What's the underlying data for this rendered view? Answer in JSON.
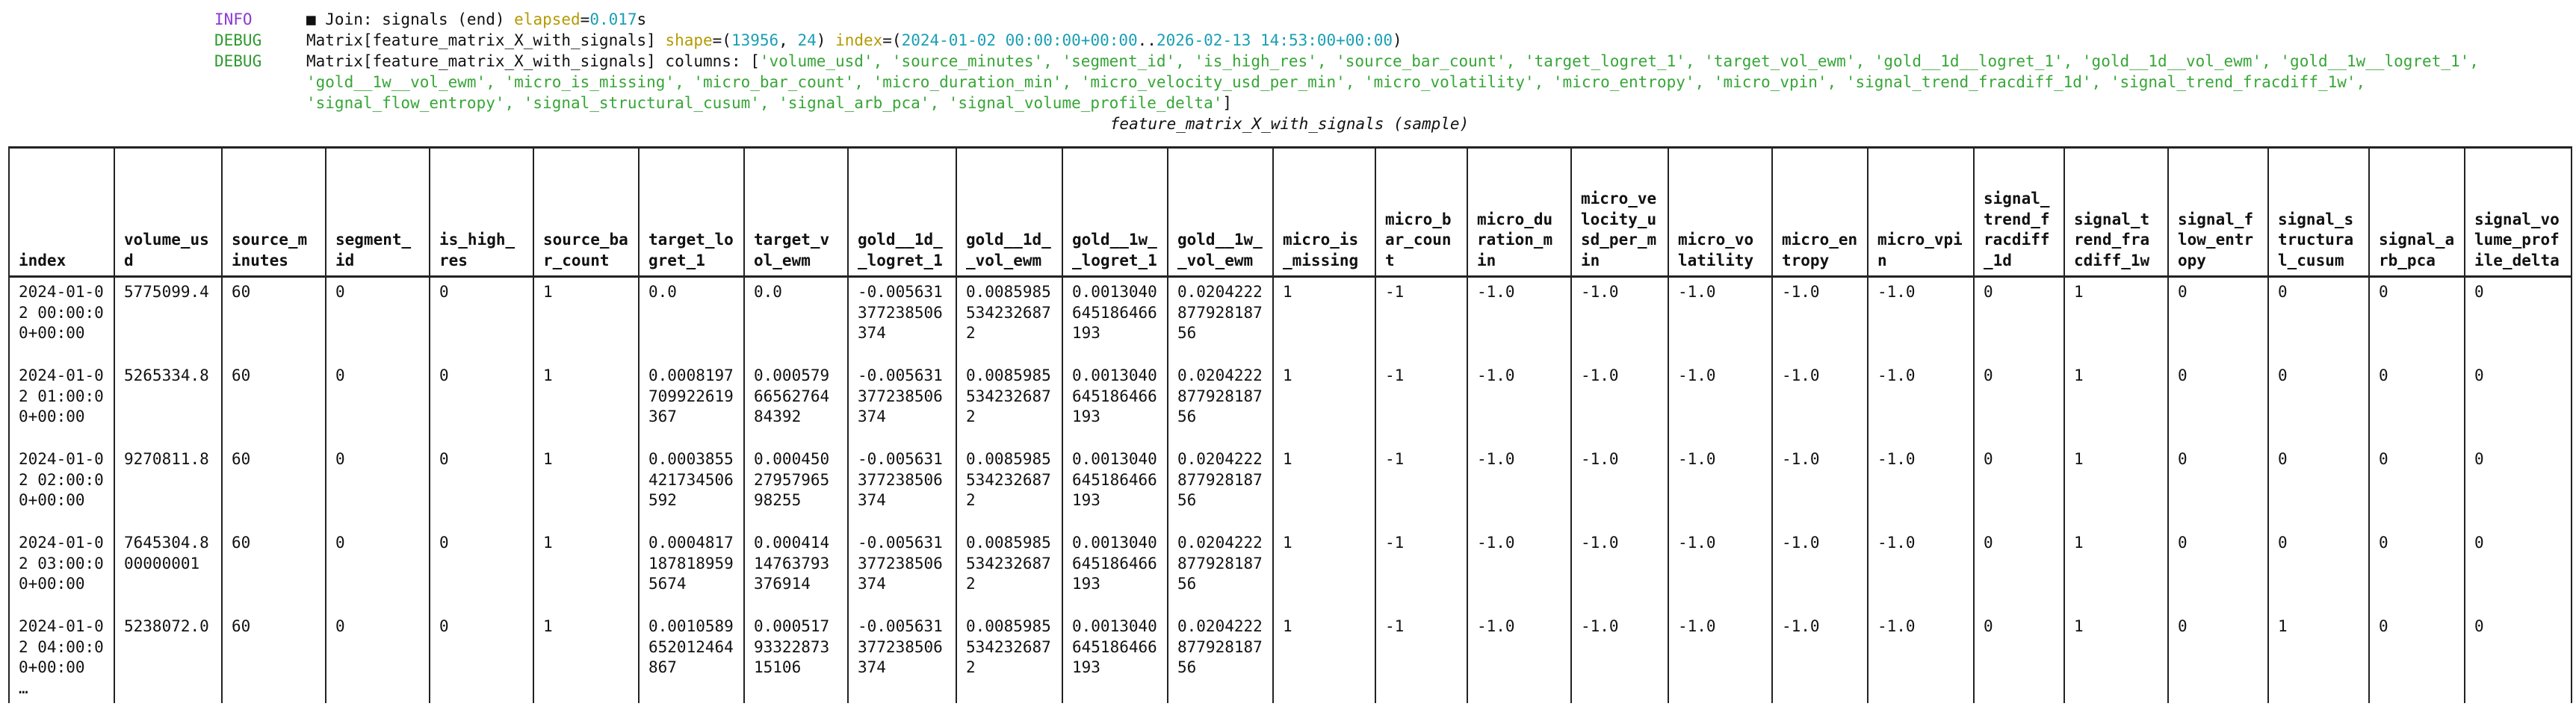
{
  "log": [
    {
      "level": "INFO",
      "message": [
        {
          "text": "■ Join: signals (end) ",
          "kind": "plain"
        },
        {
          "text": "elapsed",
          "kind": "key"
        },
        {
          "text": "=",
          "kind": "plain"
        },
        {
          "text": "0.017",
          "kind": "number"
        },
        {
          "text": "s",
          "kind": "plain"
        }
      ]
    },
    {
      "level": "DEBUG",
      "message": [
        {
          "text": "Matrix[feature_matrix_X_with_signals] ",
          "kind": "plain"
        },
        {
          "text": "shape",
          "kind": "key"
        },
        {
          "text": "=(",
          "kind": "plain"
        },
        {
          "text": "13956",
          "kind": "number"
        },
        {
          "text": ", ",
          "kind": "plain"
        },
        {
          "text": "24",
          "kind": "number"
        },
        {
          "text": ") ",
          "kind": "plain"
        },
        {
          "text": "index",
          "kind": "key"
        },
        {
          "text": "=(",
          "kind": "plain"
        },
        {
          "text": "2024-01-02 00:00:00+00:00",
          "kind": "number"
        },
        {
          "text": "..",
          "kind": "plain"
        },
        {
          "text": "2026-02-13 14:53:00+00:00",
          "kind": "number"
        },
        {
          "text": ")",
          "kind": "plain"
        }
      ]
    },
    {
      "level": "DEBUG",
      "message": [
        {
          "text": "Matrix[feature_matrix_X_with_signals] columns: [",
          "kind": "plain"
        },
        {
          "text": "'volume_usd', 'source_minutes', 'segment_id', 'is_high_res', 'source_bar_count', 'target_logret_1', 'target_vol_ewm', 'gold__1d__logret_1', 'gold__1d__vol_ewm', 'gold__1w__logret_1', 'gold__1w__vol_ewm', 'micro_is_missing', 'micro_bar_count', 'micro_duration_min', 'micro_velocity_usd_per_min', 'micro_volatility', 'micro_entropy', 'micro_vpin', 'signal_trend_fracdiff_1d', 'signal_trend_fracdiff_1w', 'signal_flow_entropy', 'signal_structural_cusum', 'signal_arb_pca', 'signal_volume_profile_delta'",
          "kind": "string"
        },
        {
          "text": "]",
          "kind": "plain"
        }
      ]
    }
  ],
  "caption": "feature_matrix_X_with_signals (sample)",
  "table": {
    "columns": [
      "index",
      "volume_usd",
      "source_minutes",
      "segment_id",
      "is_high_res",
      "source_bar_count",
      "target_logret_1",
      "target_vol_ewm",
      "gold__1d__logret_1",
      "gold__1d__vol_ewm",
      "gold__1w__logret_1",
      "gold__1w__vol_ewm",
      "micro_is_missing",
      "micro_bar_count",
      "micro_duration_min",
      "micro_velocity_usd_per_min",
      "micro_volatility",
      "micro_entropy",
      "micro_vpin",
      "signal_trend_fracdiff_1d",
      "signal_trend_fracdiff_1w",
      "signal_flow_entropy",
      "signal_structural_cusum",
      "signal_arb_pca",
      "signal_volume_profile_delta"
    ],
    "rows": [
      [
        "2024-01-02 00:00:00+00:00",
        "5775099.4",
        "60",
        "0",
        "0",
        "1",
        "0.0",
        "0.0",
        "-0.005631377238506374",
        "0.00859855342326872",
        "0.0013040645186466193",
        "0.020422287792818756",
        "1",
        "-1",
        "-1.0",
        "-1.0",
        "-1.0",
        "-1.0",
        "-1.0",
        "0",
        "1",
        "0",
        "0",
        "0",
        "0"
      ],
      [
        "2024-01-02 01:00:00+00:00",
        "5265334.8",
        "60",
        "0",
        "0",
        "1",
        "0.0008197709922619367",
        "0.0005796656276484392",
        "-0.005631377238506374",
        "0.00859855342326872",
        "0.0013040645186466193",
        "0.020422287792818756",
        "1",
        "-1",
        "-1.0",
        "-1.0",
        "-1.0",
        "-1.0",
        "-1.0",
        "0",
        "1",
        "0",
        "0",
        "0",
        "0"
      ],
      [
        "2024-01-02 02:00:00+00:00",
        "9270811.8",
        "60",
        "0",
        "0",
        "1",
        "0.0003855421734506592",
        "0.0004502795796598255",
        "-0.005631377238506374",
        "0.00859855342326872",
        "0.0013040645186466193",
        "0.020422287792818756",
        "1",
        "-1",
        "-1.0",
        "-1.0",
        "-1.0",
        "-1.0",
        "-1.0",
        "0",
        "1",
        "0",
        "0",
        "0",
        "0"
      ],
      [
        "2024-01-02 03:00:00+00:00",
        "7645304.800000001",
        "60",
        "0",
        "0",
        "1",
        "0.00048171878189595674",
        "0.00041414763793376914",
        "-0.005631377238506374",
        "0.00859855342326872",
        "0.0013040645186466193",
        "0.020422287792818756",
        "1",
        "-1",
        "-1.0",
        "-1.0",
        "-1.0",
        "-1.0",
        "-1.0",
        "0",
        "1",
        "0",
        "0",
        "0",
        "0"
      ],
      [
        "2024-01-02 04:00:00+00:00",
        "5238072.0",
        "60",
        "0",
        "0",
        "1",
        "0.0010589652012464867",
        "0.0005179332287315106",
        "-0.005631377238506374",
        "0.00859855342326872",
        "0.0013040645186466193",
        "0.020422287792818756",
        "1",
        "-1",
        "-1.0",
        "-1.0",
        "-1.0",
        "-1.0",
        "-1.0",
        "0",
        "1",
        "0",
        "1",
        "0",
        "0"
      ]
    ],
    "truncation": "…"
  }
}
